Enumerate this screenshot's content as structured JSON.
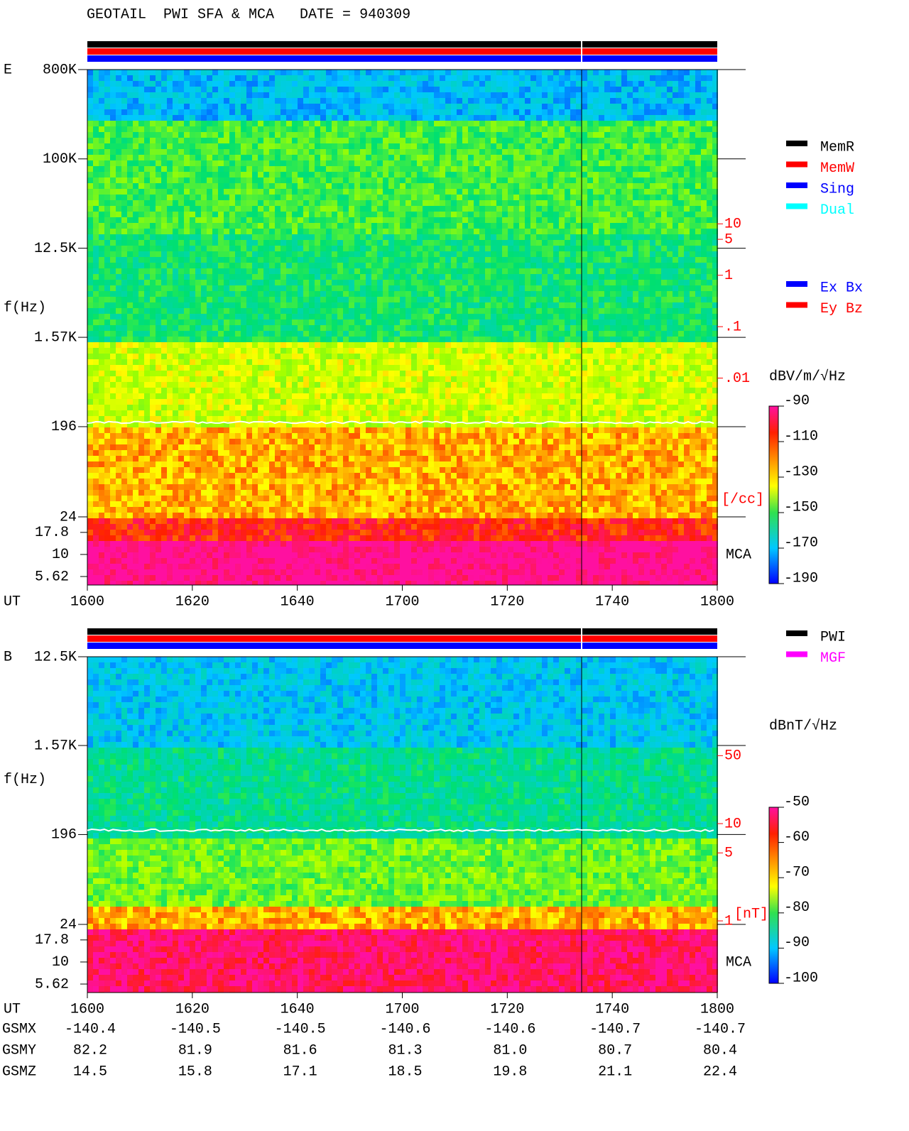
{
  "title": "GEOTAIL  PWI SFA & MCA   DATE = 940309",
  "chart_data": [
    {
      "type": "spectrogram",
      "panel_label": "E",
      "y_label": "f(Hz)",
      "x_label": "UT",
      "log_scale": true,
      "ylim": [
        24,
        800000
      ],
      "yticks": [
        {
          "value": 800000,
          "label": "800K"
        },
        {
          "value": 100000,
          "label": "100K"
        },
        {
          "value": 12500,
          "label": "12.5K"
        },
        {
          "value": 1570,
          "label": "1.57K"
        },
        196,
        24
      ],
      "mca_label": "MCA",
      "mca_ylim": [
        4.5,
        26.7
      ],
      "mca_ticks": [
        17.8,
        10,
        5.62
      ],
      "categories": [
        "1600",
        "1620",
        "1640",
        "1700",
        "1720",
        "1740",
        "1800"
      ],
      "y2_color": "#ff0000",
      "y2lim": [
        2e-05,
        10000
      ],
      "y2ticks": [
        10,
        5,
        1,
        {
          "value": 0.1,
          "label": ".1"
        },
        {
          "value": 0.01,
          "label": ".01"
        }
      ],
      "y2_unit": "[/cc]",
      "colorbar": {
        "label": "dBV/m/√Hz",
        "clim": [
          -190,
          -90
        ],
        "ticks": [
          -90,
          -110,
          -130,
          -150,
          -170,
          -190
        ]
      },
      "legend": [
        {
          "name": "MemR",
          "color": "#000000"
        },
        {
          "name": "MemW",
          "color": "#ff0000"
        },
        {
          "name": "Sing",
          "color": "#0000ff"
        },
        {
          "name": "Dual",
          "color": "#00ffff"
        }
      ],
      "legend2": [
        {
          "name": "Ex Bx",
          "color": "#0000ff"
        },
        {
          "name": "Ey Bz",
          "color": "#ff0000"
        }
      ]
    },
    {
      "type": "spectrogram",
      "panel_label": "B",
      "y_label": "f(Hz)",
      "x_label": "UT",
      "log_scale": true,
      "ylim": [
        24,
        12500
      ],
      "yticks": [
        {
          "value": 12500,
          "label": "12.5K"
        },
        {
          "value": 1570,
          "label": "1.57K"
        },
        196,
        24
      ],
      "mca_label": "MCA",
      "mca_ylim": [
        4.5,
        26.7
      ],
      "mca_ticks": [
        17.8,
        10,
        5.62
      ],
      "categories": [
        "1600",
        "1620",
        "1640",
        "1700",
        "1720",
        "1740",
        "1800"
      ],
      "y2_color": "#ff0000",
      "y2lim": [
        0.92,
        520
      ],
      "y2ticks": [
        50,
        10,
        5,
        1
      ],
      "y2_unit": "[nT]",
      "colorbar": {
        "label": "dBnT/√Hz",
        "clim": [
          -100,
          -50
        ],
        "ticks": [
          -50,
          -60,
          -70,
          -80,
          -90,
          -100
        ]
      },
      "legend": [
        {
          "name": "PWI",
          "color": "#000000"
        },
        {
          "name": "MGF",
          "color": "#ff00ff"
        }
      ]
    }
  ],
  "orbit": {
    "rows": [
      {
        "name": "GSMX",
        "values": [
          -140.4,
          -140.5,
          -140.5,
          -140.6,
          -140.6,
          -140.7,
          -140.7
        ]
      },
      {
        "name": "GSMY",
        "values": [
          82.2,
          81.9,
          81.6,
          81.3,
          {
            "value": 81,
            "label": "81.0"
          },
          80.7,
          80.4
        ]
      },
      {
        "name": "GSMZ",
        "values": [
          14.5,
          15.8,
          17.1,
          18.5,
          19.8,
          21.1,
          22.4
        ]
      }
    ]
  }
}
